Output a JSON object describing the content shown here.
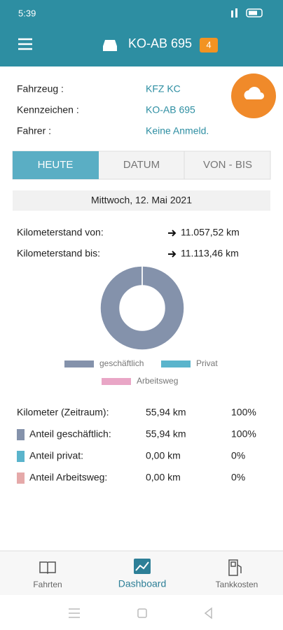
{
  "status_bar": {
    "time": "5:39"
  },
  "header": {
    "title": "KO-AB 695",
    "badge": "4"
  },
  "info": [
    {
      "label": "Fahrzeug :",
      "value": "KFZ KC"
    },
    {
      "label": "Kennzeichen :",
      "value": "KO-AB 695"
    },
    {
      "label": "Fahrer :",
      "value": "Keine Anmeld."
    }
  ],
  "tabs": [
    "HEUTE",
    "DATUM",
    "VON - BIS"
  ],
  "date": "Mittwoch, 12. Mai 2021",
  "odometer": [
    {
      "label": "Kilometerstand von:",
      "value": "11.057,52 km"
    },
    {
      "label": "Kilometerstand bis:",
      "value": "11.113,46 km"
    }
  ],
  "chart_data": {
    "type": "donut",
    "categories": [
      "geschäftlich",
      "Privat",
      "Arbeitsweg"
    ],
    "values": [
      100,
      0,
      0
    ],
    "colors": [
      "#8492ab",
      "#5ab4cc",
      "#e9a6c6"
    ]
  },
  "stats": {
    "rows": [
      [
        "Kilometer (Zeitraum):",
        "55,94 km",
        "100%"
      ],
      [
        "Anteil geschäftlich:",
        "55,94 km",
        "100%"
      ],
      [
        "Anteil privat:",
        "0,00 km",
        "0%"
      ],
      [
        "Anteil Arbeitsweg:",
        "0,00 km",
        "0%"
      ]
    ]
  },
  "nav": {
    "items": [
      "Fahrten",
      "Dashboard",
      "Tankkosten"
    ]
  }
}
